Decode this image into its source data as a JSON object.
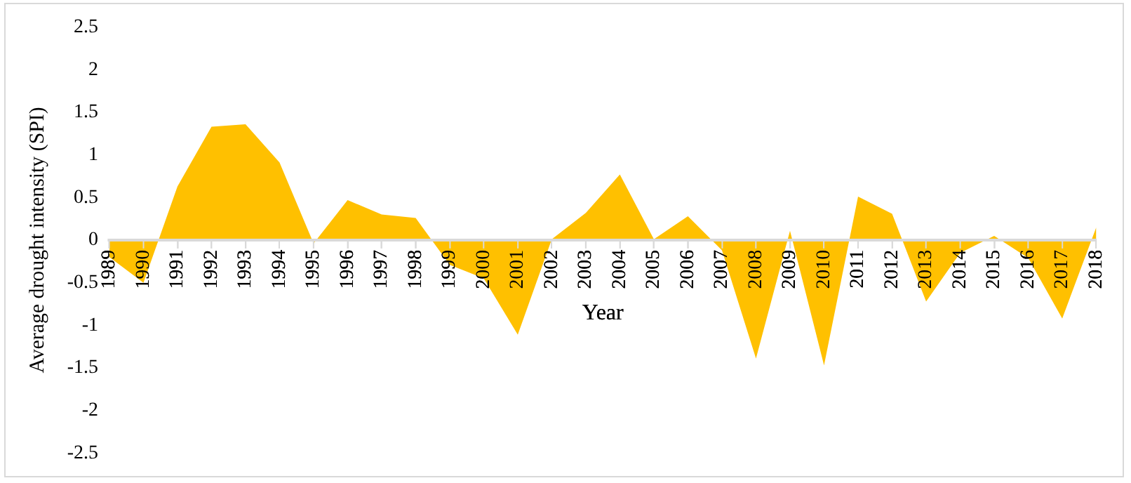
{
  "chart_data": {
    "type": "area",
    "xlabel": "Year",
    "ylabel": "Average drought intensity (SPI)",
    "categories": [
      "1989",
      "1990",
      "1991",
      "1992",
      "1993",
      "1994",
      "1995",
      "1996",
      "1997",
      "1998",
      "1999",
      "2000",
      "2001",
      "2002",
      "2003",
      "2004",
      "2005",
      "2006",
      "2007",
      "2008",
      "2009",
      "2010",
      "2011",
      "2012",
      "2013",
      "2014",
      "2015",
      "2016",
      "2017",
      "2018"
    ],
    "series": [
      {
        "color": "#ffc000",
        "values": [
          -0.2,
          -0.5,
          0.63,
          1.33,
          1.36,
          0.91,
          -0.04,
          0.47,
          0.3,
          0.26,
          -0.29,
          -0.45,
          -1.11,
          0.01,
          0.32,
          0.77,
          0.01,
          0.28,
          -0.12,
          -1.39,
          0.11,
          -1.47,
          0.51,
          0.31,
          -0.72,
          -0.15,
          0.05,
          -0.21,
          -0.92,
          0.15
        ]
      }
    ],
    "ylim": [
      -2.5,
      2.5
    ],
    "yticks": [
      -2.5,
      -2,
      -1.5,
      -1,
      -0.5,
      0,
      0.5,
      1,
      1.5,
      2,
      2.5
    ],
    "grid": false,
    "legend": false
  }
}
